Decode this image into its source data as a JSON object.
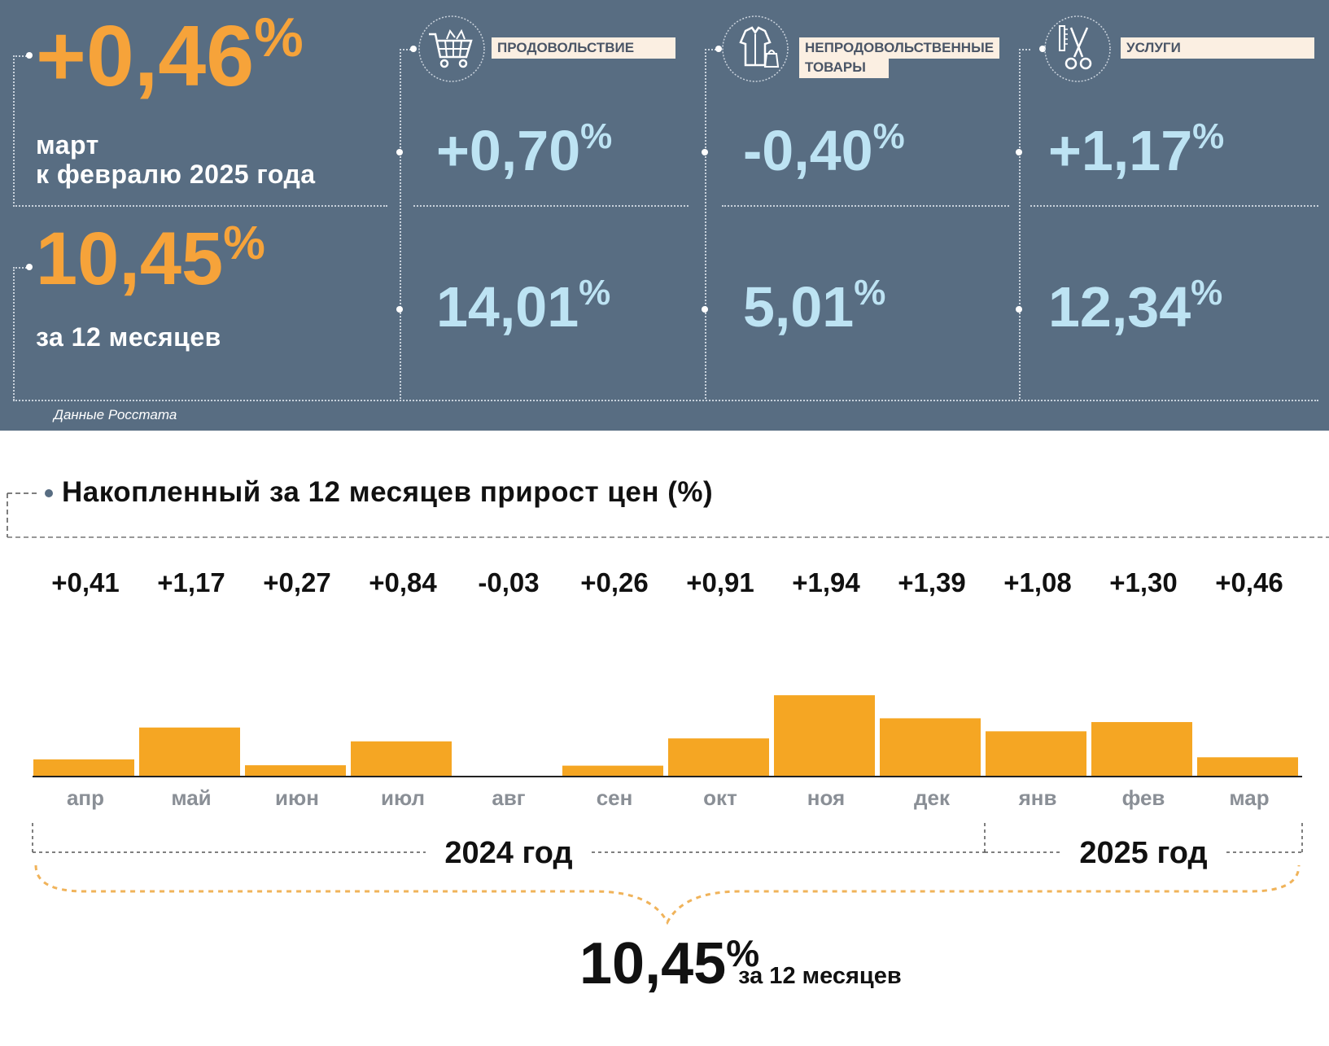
{
  "header": {
    "monthly": {
      "value": "+0,46",
      "unit": "%",
      "line1": "март",
      "line2": "к февралю 2025 года"
    },
    "annual": {
      "value": "10,45",
      "unit": "%",
      "caption": "за 12 месяцев"
    },
    "categories": [
      {
        "label_lines": [
          "ПРОДОВОЛЬСТВИЕ"
        ],
        "icon": "shopping-cart-icon",
        "monthly": "+0,70",
        "annual": "14,01",
        "unit": "%"
      },
      {
        "label_lines": [
          "НЕПРОДОВОЛЬСТВЕННЫЕ",
          "ТОВАРЫ"
        ],
        "icon": "clothing-icon",
        "monthly": "-0,40",
        "annual": "5,01",
        "unit": "%"
      },
      {
        "label_lines": [
          "УСЛУГИ"
        ],
        "icon": "scissors-comb-icon",
        "monthly": "+1,17",
        "annual": "12,34",
        "unit": "%"
      }
    ],
    "source": "Данные Росстата"
  },
  "section_title": "Накопленный за 12 месяцев прирост цен (%)",
  "chart_data": {
    "type": "bar",
    "categories": [
      "апр",
      "май",
      "июн",
      "июл",
      "авг",
      "сен",
      "окт",
      "ноя",
      "дек",
      "янв",
      "фев",
      "мар"
    ],
    "values": [
      0.41,
      1.17,
      0.27,
      0.84,
      -0.03,
      0.26,
      0.91,
      1.94,
      1.39,
      1.08,
      1.3,
      0.46
    ],
    "value_labels": [
      "+0,41",
      "+1,17",
      "+0,27",
      "+0,84",
      "-0,03",
      "+0,26",
      "+0,91",
      "+1,94",
      "+1,39",
      "+1,08",
      "+1,30",
      "+0,46"
    ],
    "year_groups": [
      {
        "label": "2024 год",
        "months": 9
      },
      {
        "label": "2025 год",
        "months": 3
      }
    ],
    "colors": {
      "bar": "#f5a623",
      "baseline": "#222222"
    },
    "total": {
      "value": "10,45",
      "unit": "%",
      "caption": "за 12 месяцев"
    }
  }
}
